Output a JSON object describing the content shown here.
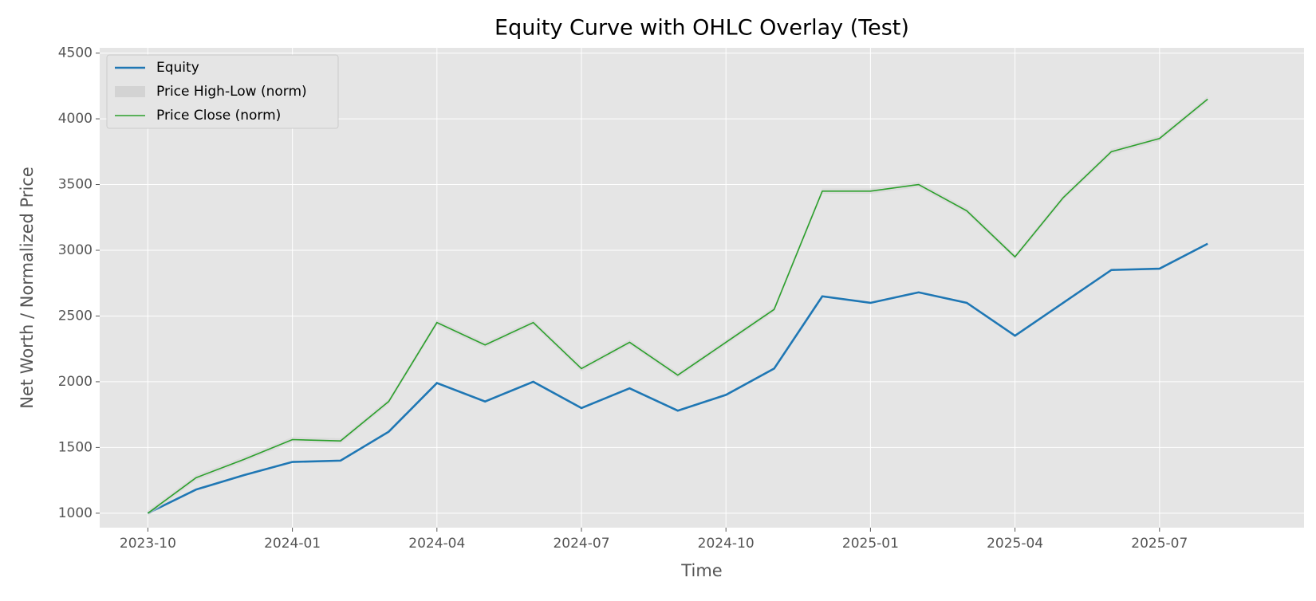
{
  "chart_data": {
    "type": "line",
    "title": "Equity Curve with OHLC Overlay (Test)",
    "xlabel": "Time",
    "ylabel": "Net Worth / Normalized Price",
    "x": [
      "2023-10",
      "2023-11",
      "2023-12",
      "2024-01",
      "2024-02",
      "2024-03",
      "2024-04",
      "2024-05",
      "2024-06",
      "2024-07",
      "2024-08",
      "2024-09",
      "2024-10",
      "2024-11",
      "2024-12",
      "2025-01",
      "2025-02",
      "2025-03",
      "2025-04",
      "2025-05",
      "2025-06",
      "2025-07",
      "2025-08"
    ],
    "series": [
      {
        "name": "Equity",
        "color": "#1f77b4",
        "values": [
          1000,
          1180,
          1290,
          1390,
          1400,
          1620,
          1990,
          1850,
          2000,
          1800,
          1950,
          1780,
          1900,
          2100,
          2650,
          2600,
          2680,
          2600,
          2350,
          2600,
          2850,
          2860,
          3050
        ]
      },
      {
        "name": "Price High-Low (norm)",
        "type": "band",
        "color": "#d3d3d3",
        "high": [
          1020,
          1290,
          1430,
          1580,
          1570,
          1870,
          2470,
          2300,
          2470,
          2120,
          2320,
          2070,
          2320,
          2570,
          3470,
          3470,
          3520,
          3320,
          2970,
          3420,
          3770,
          3870,
          4170
        ],
        "values": [
          980,
          1250,
          1390,
          1540,
          1530,
          1830,
          2430,
          2260,
          2430,
          2080,
          2280,
          2030,
          2280,
          2530,
          3430,
          3430,
          3480,
          3280,
          2930,
          3380,
          3730,
          3830,
          4130
        ]
      },
      {
        "name": "Price Close (norm)",
        "color": "#2ca02c",
        "values": [
          1000,
          1270,
          1410,
          1560,
          1550,
          1850,
          2450,
          2280,
          2450,
          2100,
          2300,
          2050,
          2300,
          2550,
          3450,
          3450,
          3500,
          3300,
          2950,
          3400,
          3750,
          3850,
          4150
        ]
      }
    ],
    "xlim": [
      "2023-09",
      "2025-10"
    ],
    "xticks": [
      "2023-10",
      "2024-01",
      "2024-04",
      "2024-07",
      "2024-10",
      "2025-01",
      "2025-04",
      "2025-07"
    ],
    "ylim": [
      890,
      4540
    ],
    "yticks": [
      1000,
      1500,
      2000,
      2500,
      3000,
      3500,
      4000,
      4500
    ],
    "grid": true,
    "legend": "upper left"
  }
}
